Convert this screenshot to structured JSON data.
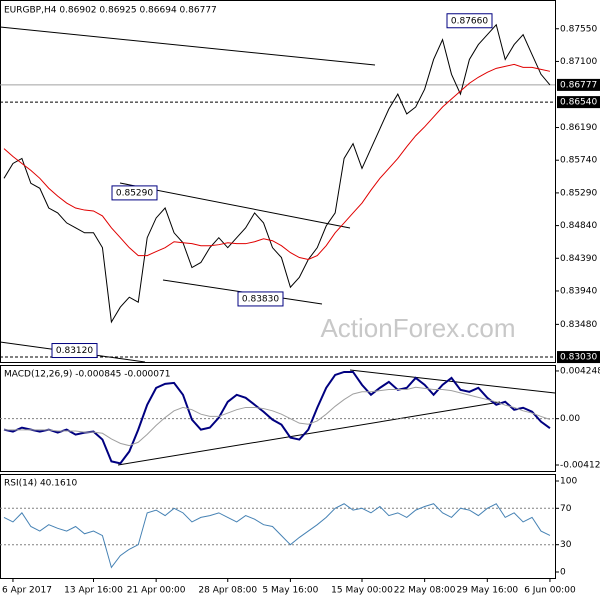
{
  "chart_data": [
    {
      "type": "line",
      "title": "EURGBP,H4 0.86902 0.86925 0.86694 0.86777",
      "series": [
        {
          "color": "#000000",
          "values": [
            0.85491,
            0.85695,
            0.85764,
            0.85423,
            0.85354,
            0.85082,
            0.85014,
            0.84877,
            0.84809,
            0.84741,
            0.84741,
            0.84536,
            0.83513,
            0.83718,
            0.83854,
            0.83786,
            0.84673,
            0.84945,
            0.85082,
            0.84741,
            0.84604,
            0.84263,
            0.84332,
            0.84536,
            0.84673,
            0.84536,
            0.84673,
            0.84809,
            0.85014,
            0.84877,
            0.84536,
            0.844,
            0.83991,
            0.84127,
            0.84373,
            0.84536,
            0.84836,
            0.85014,
            0.85764,
            0.85968,
            0.85627,
            0.859,
            0.86173,
            0.86445,
            0.8665,
            0.86377,
            0.86473,
            0.86718,
            0.87127,
            0.874,
            0.86923,
            0.8665,
            0.87127,
            0.87332,
            0.87468,
            0.87605,
            0.87127,
            0.87332,
            0.87468,
            0.87195,
            0.86923,
            0.86777
          ]
        },
        {
          "color": "#e00000",
          "values": [
            0.859,
            0.85791,
            0.85695,
            0.856,
            0.85491,
            0.85354,
            0.85245,
            0.8515,
            0.85082,
            0.85054,
            0.85041,
            0.84973,
            0.84809,
            0.84673,
            0.84536,
            0.84427,
            0.84427,
            0.84482,
            0.84536,
            0.84618,
            0.84604,
            0.84591,
            0.84563,
            0.84563,
            0.84577,
            0.84604,
            0.84591,
            0.84591,
            0.84618,
            0.84659,
            0.84632,
            0.84563,
            0.84468,
            0.844,
            0.84373,
            0.84427,
            0.84563,
            0.84741,
            0.84877,
            0.85014,
            0.8515,
            0.85327,
            0.85491,
            0.85627,
            0.85764,
            0.85927,
            0.86077,
            0.862,
            0.86336,
            0.86473,
            0.86582,
            0.86691,
            0.868,
            0.86882,
            0.8695,
            0.87005,
            0.87032,
            0.87059,
            0.87018,
            0.87018,
            0.86991,
            0.86964
          ]
        }
      ],
      "ylim": [
        0.82962,
        0.87877
      ],
      "yticks": [
        {
          "value": 0.8755,
          "label": "0.87550"
        },
        {
          "value": 0.871,
          "label": "0.87100"
        },
        {
          "value": 0.8619,
          "label": "0.86190"
        },
        {
          "value": 0.8574,
          "label": "0.85740"
        },
        {
          "value": 0.8529,
          "label": "0.85290"
        },
        {
          "value": 0.8484,
          "label": "0.84840"
        },
        {
          "value": 0.8439,
          "label": "0.84390"
        },
        {
          "value": 0.8394,
          "label": "0.83940"
        },
        {
          "value": 0.8348,
          "label": "0.83480"
        }
      ],
      "hlines": [
        {
          "value": 0.86777,
          "label": "0.86777",
          "style": "solid"
        },
        {
          "value": 0.8654,
          "label": "0.86540",
          "style": "dashed"
        },
        {
          "value": 0.8303,
          "label": "0.83030",
          "style": "dashed"
        }
      ],
      "annotations": [
        {
          "value": 0.8766,
          "text": "0.87660"
        },
        {
          "value": 0.8529,
          "text": "0.85290"
        },
        {
          "value": 0.8383,
          "text": "0.83830"
        },
        {
          "value": 0.8312,
          "text": "0.83120"
        }
      ],
      "watermark": "ActionForex.com"
    },
    {
      "type": "line",
      "title": "MACD(12,26,9) -0.000845 -0.000071",
      "series": [
        {
          "color": "#000080",
          "values": [
            -0.000974,
            -0.00115,
            -0.000797,
            -0.000974,
            -0.00115,
            -0.000974,
            -0.001239,
            -0.000974,
            -0.001416,
            -0.001239,
            -0.00115,
            -0.001858,
            -0.003805,
            -0.003982,
            -0.00292,
            -0.000974,
            0.001239,
            0.002743,
            0.003097,
            0.003186,
            0.002124,
            -8.8e-05,
            -0.000974,
            -0.000797,
            8.8e-05,
            0.001504,
            0.002124,
            0.001858,
            0.001239,
            0.000619,
            -8.8e-05,
            -0.000531,
            -0.001681,
            -0.001858,
            -0.000974,
            0.000973,
            0.002743,
            0.003894,
            0.004159,
            0.004159,
            0.003009,
            0.002124,
            0.002743,
            0.003274,
            0.002566,
            0.002743,
            0.003628,
            0.003009,
            0.002124,
            0.003009,
            0.003628,
            0.002566,
            0.002389,
            0.002743,
            0.001858,
            0.001239,
            0.001504,
            0.000796,
            0.000973,
            0.000619,
            -0.000265,
            -0.000845
          ]
        },
        {
          "color": "#a0a0a0",
          "values": [
            -0.001,
            -0.001,
            -0.001,
            -0.001,
            -0.001,
            -0.001,
            -0.0011,
            -0.0011,
            -0.0011,
            -0.0012,
            -0.0012,
            -0.0013,
            -0.0018,
            -0.0022,
            -0.0024,
            -0.0021,
            -0.0014,
            -0.0006,
            0.0001,
            0.0007,
            0.001,
            0.0008,
            0.0004,
            0.0002,
            0.0002,
            0.0005,
            0.0008,
            0.001,
            0.001,
            0.0009,
            0.0007,
            0.0004,
            0,
            -0.0004,
            -0.0005,
            -0.0002,
            0.0004,
            0.0011,
            0.0017,
            0.0022,
            0.0024,
            0.0024,
            0.0025,
            0.0026,
            0.0026,
            0.0026,
            0.0028,
            0.0027,
            0.0026,
            0.0026,
            0.0025,
            0.0023,
            0.0021,
            0.0019,
            0.0017,
            0.0015,
            0.0012,
            0.001,
            0.0007,
            0.0005,
            0.0002,
            -7.1e-05
          ]
        }
      ],
      "ylim": [
        -0.00457,
        0.0046
      ],
      "yticks": [
        0.004248,
        {
          "value": 0,
          "label": "0.00"
        },
        -0.004126
      ],
      "levels": [
        0
      ]
    },
    {
      "type": "line",
      "title": "RSI(14) 40.1610",
      "categories": [
        null,
        "6 Apr 2017",
        null,
        null,
        null,
        null,
        null,
        null,
        null,
        null,
        "13 Apr 16:00",
        null,
        null,
        null,
        null,
        null,
        null,
        "21 Apr 00:00",
        null,
        null,
        null,
        null,
        null,
        null,
        null,
        "28 Apr 08:00",
        null,
        null,
        null,
        null,
        null,
        null,
        "5 May 16:00",
        null,
        null,
        null,
        null,
        null,
        null,
        null,
        "15 May 00:00",
        null,
        null,
        null,
        null,
        null,
        null,
        "22 May 08:00",
        null,
        null,
        null,
        null,
        null,
        null,
        "29 May 16:00",
        null,
        null,
        null,
        null,
        null,
        null,
        "6 Jun 00:00"
      ],
      "series": [
        {
          "color": "#4682b4",
          "values": [
            60,
            55,
            65,
            50,
            45,
            52,
            48,
            45,
            50,
            42,
            45,
            40,
            5,
            18,
            25,
            30,
            65,
            68,
            62,
            70,
            65,
            55,
            60,
            62,
            65,
            60,
            55,
            62,
            58,
            52,
            50,
            40,
            30,
            38,
            45,
            52,
            60,
            70,
            75,
            68,
            70,
            65,
            72,
            62,
            65,
            60,
            68,
            72,
            75,
            65,
            60,
            70,
            68,
            62,
            70,
            75,
            60,
            65,
            55,
            60,
            45,
            40.161
          ]
        }
      ],
      "ylim": [
        -6.6,
        105.5
      ],
      "yticks": [
        100,
        70,
        30,
        0
      ],
      "levels": [
        70,
        30
      ]
    }
  ]
}
